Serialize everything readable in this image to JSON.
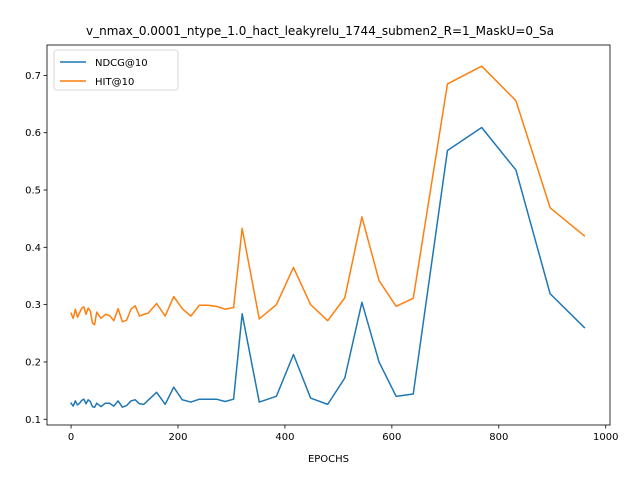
{
  "chart_data": {
    "type": "line",
    "title": "v_nmax_0.0001_ntype_1.0_hact_leakyrelu_1744_submen2_R=1_MaskU=0_Sa",
    "xlabel": "EPOCHS",
    "ylabel": "",
    "xlim": [
      -45,
      1008
    ],
    "ylim": [
      0.09,
      0.753
    ],
    "xticks": [
      0,
      200,
      400,
      600,
      800,
      1000
    ],
    "yticks": [
      0.1,
      0.2,
      0.3,
      0.4,
      0.5,
      0.6,
      0.7
    ],
    "xtick_labels": [
      "0",
      "200",
      "400",
      "600",
      "800",
      "1000"
    ],
    "ytick_labels": [
      "0.1",
      "0.2",
      "0.3",
      "0.4",
      "0.5",
      "0.6",
      "0.7"
    ],
    "legend_placement": "upper-left",
    "grid": false,
    "x": [
      0,
      4,
      8,
      12,
      16,
      20,
      24,
      28,
      32,
      36,
      40,
      44,
      48,
      56,
      64,
      72,
      80,
      88,
      96,
      104,
      112,
      120,
      128,
      136,
      144,
      160,
      176,
      192,
      208,
      224,
      240,
      256,
      272,
      288,
      304,
      320,
      352,
      384,
      416,
      448,
      480,
      512,
      544,
      576,
      608,
      640,
      704,
      768,
      832,
      896,
      960
    ],
    "series": [
      {
        "name": "NDCG@10",
        "color": "#1f77b4",
        "values": [
          0.128,
          0.123,
          0.132,
          0.125,
          0.128,
          0.133,
          0.135,
          0.127,
          0.134,
          0.131,
          0.122,
          0.121,
          0.128,
          0.122,
          0.128,
          0.128,
          0.123,
          0.132,
          0.121,
          0.124,
          0.132,
          0.134,
          0.127,
          0.126,
          0.133,
          0.147,
          0.126,
          0.156,
          0.134,
          0.13,
          0.135,
          0.135,
          0.135,
          0.131,
          0.135,
          0.284,
          0.13,
          0.14,
          0.213,
          0.137,
          0.126,
          0.172,
          0.304,
          0.2,
          0.14,
          0.144,
          0.569,
          0.609,
          0.535,
          0.319,
          0.26
        ]
      },
      {
        "name": "HIT@10",
        "color": "#ff7f0e",
        "values": [
          0.285,
          0.276,
          0.292,
          0.278,
          0.286,
          0.294,
          0.296,
          0.283,
          0.294,
          0.289,
          0.268,
          0.265,
          0.287,
          0.276,
          0.283,
          0.281,
          0.272,
          0.293,
          0.27,
          0.273,
          0.292,
          0.298,
          0.28,
          0.283,
          0.285,
          0.302,
          0.28,
          0.314,
          0.293,
          0.28,
          0.299,
          0.299,
          0.297,
          0.292,
          0.295,
          0.433,
          0.275,
          0.3,
          0.365,
          0.3,
          0.272,
          0.312,
          0.453,
          0.342,
          0.297,
          0.311,
          0.685,
          0.716,
          0.656,
          0.469,
          0.42
        ]
      }
    ]
  }
}
